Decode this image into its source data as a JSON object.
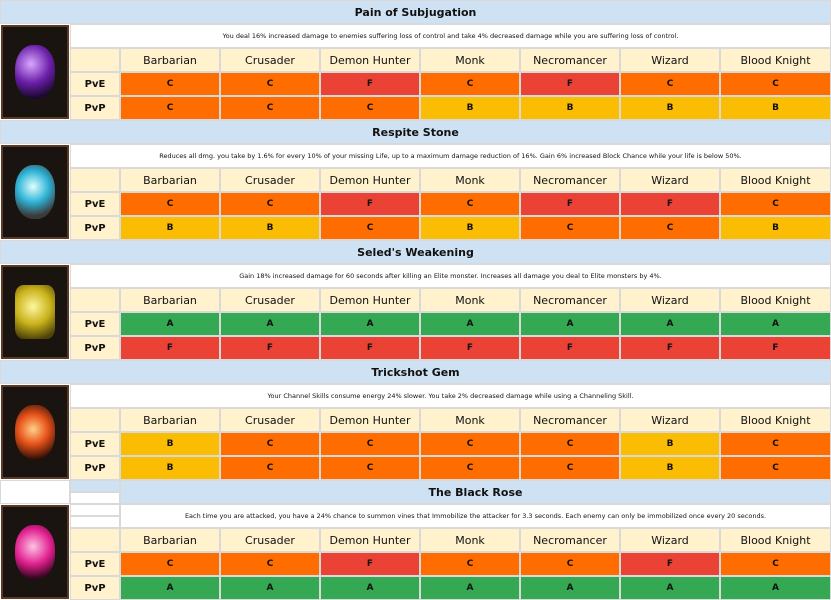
{
  "classes": [
    "Barbarian",
    "Crusader",
    "Demon Hunter",
    "Monk",
    "Necromancer",
    "Wizard",
    "Blood Knight"
  ],
  "grade_colors": {
    "A": "#34a853",
    "B": "#fbbc04",
    "C": "#ff6d01",
    "F": "#ea4335"
  },
  "gems": [
    {
      "title": "Pain of Subjugation",
      "description": "You deal 16% increased damage to enemies suffering loss of control and take 4% decreased damage while you are suffering loss of control.",
      "rows": [
        {
          "label": "PvE",
          "grades": [
            "C",
            "C",
            "F",
            "C",
            "F",
            "C",
            "C"
          ]
        },
        {
          "label": "PvP",
          "grades": [
            "C",
            "C",
            "C",
            "B",
            "B",
            "B",
            "B"
          ]
        }
      ]
    },
    {
      "title": "Respite Stone",
      "description": "Reduces all dmg. you take by 1.6% for every 10% of your missing Life, up to a maximum damage reduction of 16%. Gain 6% increased Block Chance while your life is below 50%.",
      "rows": [
        {
          "label": "PvE",
          "grades": [
            "C",
            "C",
            "F",
            "C",
            "F",
            "F",
            "C"
          ]
        },
        {
          "label": "PvP",
          "grades": [
            "B",
            "B",
            "C",
            "B",
            "C",
            "C",
            "B"
          ]
        }
      ]
    },
    {
      "title": "Seled's Weakening",
      "description": "Gain 18% increased damage for 60 seconds after killing an Elite monster. Increases all damage you deal to Elite monsters by 4%.",
      "rows": [
        {
          "label": "PvE",
          "grades": [
            "A",
            "A",
            "A",
            "A",
            "A",
            "A",
            "A"
          ]
        },
        {
          "label": "PvP",
          "grades": [
            "F",
            "F",
            "F",
            "F",
            "F",
            "F",
            "F"
          ]
        }
      ]
    },
    {
      "title": "Trickshot Gem",
      "description": "Your Channel Skills consume energy 24% slower. You take 2% decreased damage while using a Channeling Skill.",
      "rows": [
        {
          "label": "PvE",
          "grades": [
            "B",
            "C",
            "C",
            "C",
            "C",
            "B",
            "C"
          ]
        },
        {
          "label": "PvP",
          "grades": [
            "B",
            "C",
            "C",
            "C",
            "C",
            "B",
            "C"
          ]
        }
      ]
    },
    {
      "title": "The Black Rose",
      "description": "Each time you are attacked, you have a 24% chance to summon vines that Immobilize the attacker for 3.3 seconds. Each enemy can only be immobilized once every 20 seconds.",
      "rows": [
        {
          "label": "PvE",
          "grades": [
            "C",
            "C",
            "F",
            "C",
            "C",
            "F",
            "C"
          ]
        },
        {
          "label": "PvP",
          "grades": [
            "A",
            "A",
            "A",
            "A",
            "A",
            "A",
            "A"
          ]
        }
      ]
    }
  ]
}
